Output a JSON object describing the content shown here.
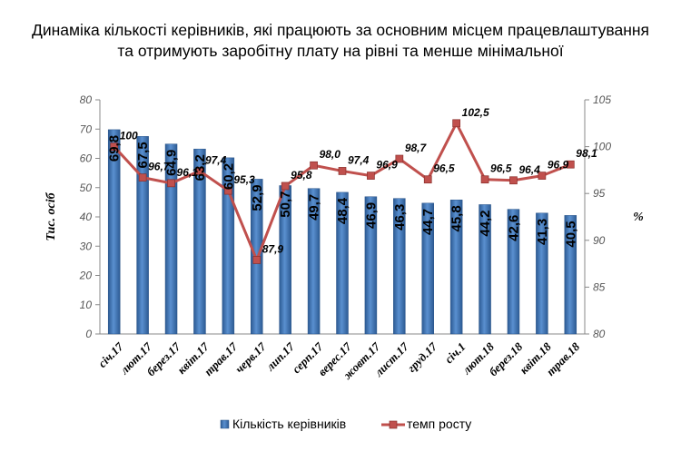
{
  "title_line1": "Динаміка кількості керівників, які працюють за основним місцем працевлаштування",
  "title_line2": "та отримують заробітну плату на рівні та менше мінімальної",
  "chart_data": {
    "type": "bar",
    "categories": [
      "січ.17",
      "лют.17",
      "берез.17",
      "квіт.17",
      "трав.17",
      "черв.17",
      "лип.17",
      "серп.17",
      "верес.17",
      "жовт.17",
      "лист.17",
      "груд.17",
      "січ.1",
      "лют.18",
      "берез.18",
      "квіт.18",
      "трав.18"
    ],
    "series": [
      {
        "name": "Кількість керівників",
        "type": "bar",
        "axis": "left",
        "color": "#4a7ebb",
        "values": [
          69.8,
          67.5,
          64.9,
          63.2,
          60.2,
          52.9,
          50.7,
          49.7,
          48.4,
          46.9,
          46.3,
          44.7,
          45.8,
          44.2,
          42.6,
          41.3,
          40.5
        ],
        "labels": [
          "69,8",
          "67,5",
          "64,9",
          "63,2",
          "60,2",
          "52,9",
          "50,7",
          "49,7",
          "48,4",
          "46,9",
          "46,3",
          "44,7",
          "45,8",
          "44,2",
          "42,6",
          "41,3",
          "40,5"
        ]
      },
      {
        "name": "темп росту",
        "type": "line",
        "axis": "right",
        "color": "#c0504d",
        "values": [
          100,
          96.7,
          96.1,
          97.4,
          95.3,
          87.9,
          95.8,
          98.0,
          97.4,
          96.9,
          98.7,
          96.5,
          102.5,
          96.5,
          96.4,
          96.9,
          98.1
        ],
        "labels": [
          "100",
          "96,7",
          "96,1",
          "97,4",
          "95,3",
          "87,9",
          "95,8",
          "98,0",
          "97,4",
          "96,9",
          "98,7",
          "96,5",
          "102,5",
          "96,5",
          "96,4",
          "96,9",
          "98,1"
        ]
      }
    ],
    "ylabel": "Тис. осіб",
    "y2label": "%",
    "ylim": [
      0,
      80
    ],
    "yticks": [
      0,
      10,
      20,
      30,
      40,
      50,
      60,
      70,
      80
    ],
    "y2lim": [
      80,
      105
    ],
    "y2ticks": [
      80,
      85,
      90,
      95,
      100,
      105
    ],
    "grid": false,
    "legend": "bottom"
  }
}
